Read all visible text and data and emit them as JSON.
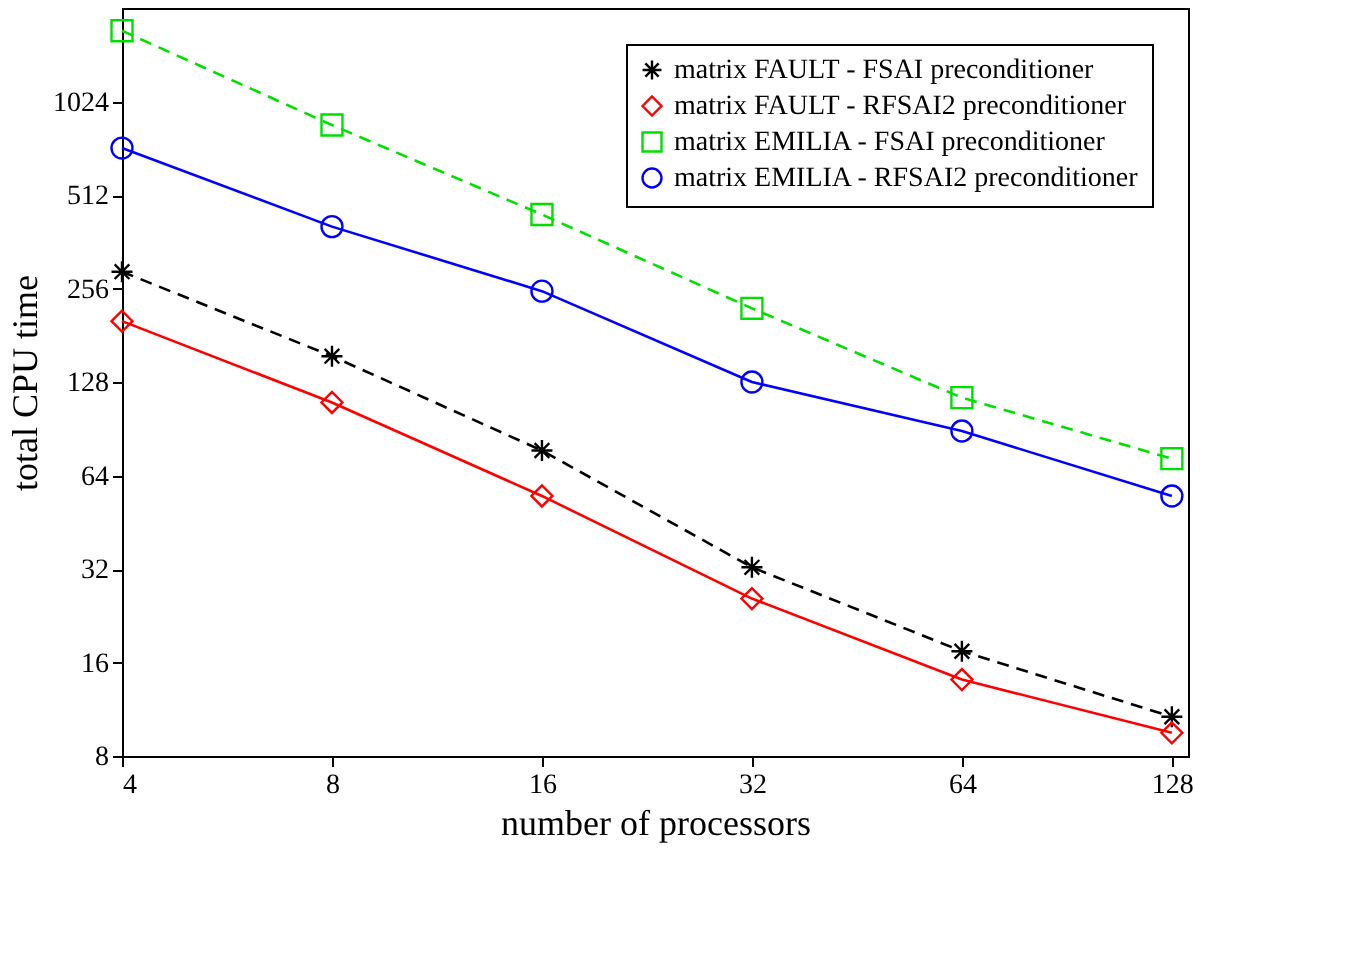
{
  "chart_data": {
    "type": "line",
    "xlabel": "number of processors",
    "ylabel": "total CPU time",
    "log": "xy",
    "grid": false,
    "legend": "top right",
    "x": [
      4,
      8,
      16,
      32,
      64,
      128
    ],
    "xlim": [
      4,
      135
    ],
    "xticks": [
      4,
      8,
      16,
      32,
      64,
      128
    ],
    "ylim": [
      8,
      2048
    ],
    "yticks": [
      8,
      16,
      32,
      64,
      128,
      256,
      512,
      1024
    ],
    "series": [
      {
        "name": "matrix FAULT - FSAI preconditioner",
        "color": "#000000",
        "marker": "cross",
        "line_style": "dashed",
        "values": [
          290,
          155,
          77,
          32.4,
          17.4,
          10.7
        ]
      },
      {
        "name": "matrix FAULT - RFSAI2 preconditioner",
        "color": "#ff0000",
        "marker": "diamond",
        "line_style": "solid",
        "values": [
          201,
          110,
          55,
          25.7,
          14.1,
          9.5
        ]
      },
      {
        "name": "matrix EMILIA - FSAI preconditioner",
        "color": "#00e000",
        "marker": "square",
        "line_style": "dashed",
        "values": [
          1730,
          860,
          443,
          221,
          114,
          72.5
        ]
      },
      {
        "name": "matrix EMILIA - RFSAI2 preconditioner",
        "color": "#0000ff",
        "marker": "circle",
        "line_style": "solid",
        "values": [
          725,
          405,
          251,
          128,
          89,
          55
        ]
      }
    ]
  }
}
